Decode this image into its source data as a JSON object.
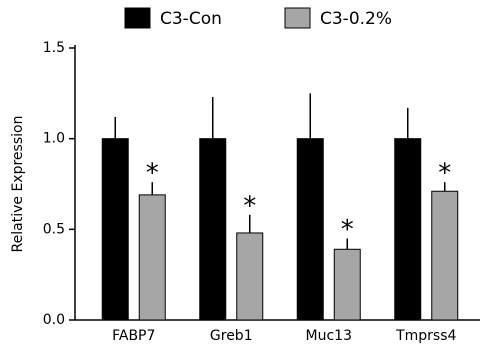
{
  "chart_data": {
    "type": "bar",
    "y_label": "Relative Expression",
    "categories": [
      "FABP7",
      "Greb1",
      "Muc13",
      "Tmprss4"
    ],
    "series": [
      {
        "name": "C3-Con",
        "color": "#000000",
        "values": [
          1.0,
          1.0,
          1.0,
          1.0
        ],
        "errors": [
          0.12,
          0.23,
          0.25,
          0.17
        ]
      },
      {
        "name": "C3-0.2%",
        "color": "#a6a6a6",
        "values": [
          0.69,
          0.48,
          0.39,
          0.71
        ],
        "errors": [
          0.07,
          0.1,
          0.06,
          0.05
        ],
        "significance": [
          "*",
          "*",
          "*",
          "*"
        ]
      }
    ],
    "ylim": [
      0,
      1.5
    ],
    "yticks": [
      {
        "value": 0,
        "label": "0.0"
      },
      {
        "value": 0.5,
        "label": "0.5"
      },
      {
        "value": 1,
        "label": "1.0"
      },
      {
        "value": 1.5,
        "label": "1.5"
      }
    ],
    "legend": "top"
  }
}
